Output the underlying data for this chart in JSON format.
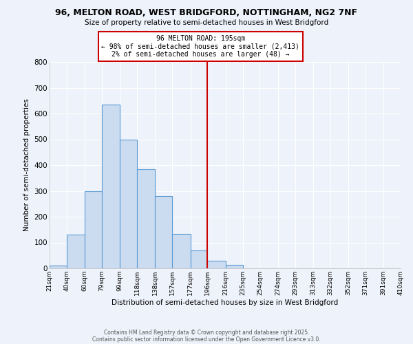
{
  "title_line1": "96, MELTON ROAD, WEST BRIDGFORD, NOTTINGHAM, NG2 7NF",
  "title_line2": "Size of property relative to semi-detached houses in West Bridgford",
  "xlabel": "Distribution of semi-detached houses by size in West Bridgford",
  "ylabel": "Number of semi-detached properties",
  "bin_edges": [
    21,
    40,
    60,
    79,
    99,
    118,
    138,
    157,
    177,
    196,
    216,
    235,
    254,
    274,
    293,
    313,
    332,
    352,
    371,
    391,
    410
  ],
  "bin_heights": [
    10,
    130,
    300,
    635,
    500,
    385,
    280,
    133,
    70,
    30,
    13,
    0,
    0,
    0,
    0,
    0,
    0,
    0,
    0,
    0
  ],
  "bar_color": "#ccdcf0",
  "bar_edge_color": "#5b9bd5",
  "vline_x": 196,
  "vline_color": "#cc0000",
  "annotation_title": "96 MELTON ROAD: 195sqm",
  "annotation_line2": "← 98% of semi-detached houses are smaller (2,413)",
  "annotation_line3": "2% of semi-detached houses are larger (48) →",
  "annotation_box_edge": "#cc0000",
  "ylim": [
    0,
    800
  ],
  "yticks": [
    0,
    100,
    200,
    300,
    400,
    500,
    600,
    700,
    800
  ],
  "background_color": "#eef2fa",
  "grid_color": "#ffffff",
  "footer_line1": "Contains HM Land Registry data © Crown copyright and database right 2025.",
  "footer_line2": "Contains public sector information licensed under the Open Government Licence v3.0.",
  "tick_labels": [
    "21sqm",
    "40sqm",
    "60sqm",
    "79sqm",
    "99sqm",
    "118sqm",
    "138sqm",
    "157sqm",
    "177sqm",
    "196sqm",
    "216sqm",
    "235sqm",
    "254sqm",
    "274sqm",
    "293sqm",
    "313sqm",
    "332sqm",
    "352sqm",
    "371sqm",
    "391sqm",
    "410sqm"
  ]
}
